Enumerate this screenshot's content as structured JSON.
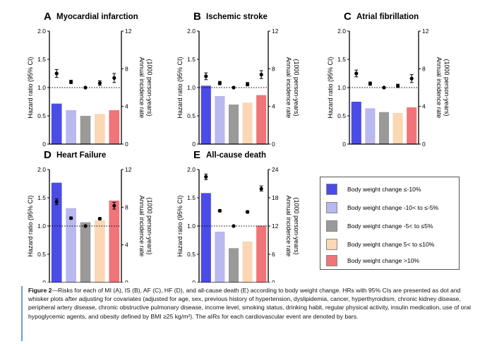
{
  "legend": [
    {
      "label": "Body weight change ≤-10%",
      "color": "#4b4ce6"
    },
    {
      "label": "Body weight change -10< to ≤-5%",
      "color": "#b9b8ef"
    },
    {
      "label": "Body weight change -5< to ≤5%",
      "color": "#9a9a9a"
    },
    {
      "label": "Body weight change 5< to ≤10%",
      "color": "#fbd7b4"
    },
    {
      "label": "Body weight change >10%",
      "color": "#f07478"
    }
  ],
  "chart_data": [
    {
      "type": "bar",
      "panel": "A",
      "title": "Myocardial infarction",
      "ylabel": "Hazard ratio (95% CI)",
      "ylabel_right": "Annual incidence rate (1000 person-years)",
      "ylim": [
        0,
        2.0
      ],
      "yticks": [
        "0",
        "0.5",
        "1.0",
        "1.5",
        "2.0"
      ],
      "ylim_right": [
        0,
        12
      ],
      "yticks_right": [
        "0",
        "4",
        "8",
        "12"
      ],
      "bar_axis": "right",
      "bars": [
        4.3,
        3.6,
        3.0,
        3.2,
        3.6
      ],
      "hr": [
        1.25,
        1.1,
        1.0,
        1.08,
        1.17
      ],
      "hr_low": [
        1.18,
        1.07,
        1.0,
        1.04,
        1.09
      ],
      "hr_high": [
        1.32,
        1.13,
        1.0,
        1.12,
        1.25
      ]
    },
    {
      "type": "bar",
      "panel": "B",
      "title": "Ischemic stroke",
      "ylabel": "Hazard ratio (95% CI)",
      "ylabel_right": "Annual incidence rate (1000 person-years)",
      "ylim": [
        0,
        2.0
      ],
      "yticks": [
        "0",
        "0.5",
        "1.0",
        "1.5",
        "2.0"
      ],
      "ylim_right": [
        0,
        12
      ],
      "yticks_right": [
        "0",
        "4",
        "8",
        "12"
      ],
      "bar_axis": "right",
      "bars": [
        6.2,
        5.1,
        4.2,
        4.4,
        5.2
      ],
      "hr": [
        1.2,
        1.08,
        1.0,
        1.06,
        1.23
      ],
      "hr_low": [
        1.14,
        1.05,
        1.0,
        1.03,
        1.16
      ],
      "hr_high": [
        1.26,
        1.11,
        1.0,
        1.09,
        1.3
      ]
    },
    {
      "type": "bar",
      "panel": "C",
      "title": "Atrial fibrillation",
      "ylabel": "Hazard ratio (95% CI)",
      "ylabel_right": "Annual incidence rate (1000 person-years)",
      "ylim": [
        0,
        2.0
      ],
      "yticks": [
        "0",
        "0.5",
        "1.0",
        "1.5",
        "2.0"
      ],
      "ylim_right": [
        0,
        12
      ],
      "yticks_right": [
        "0",
        "4",
        "8",
        "12"
      ],
      "bar_axis": "right",
      "bars": [
        4.5,
        3.8,
        3.4,
        3.3,
        3.9
      ],
      "hr": [
        1.25,
        1.07,
        1.0,
        1.03,
        1.16
      ],
      "hr_low": [
        1.19,
        1.04,
        1.0,
        1.0,
        1.09
      ],
      "hr_high": [
        1.31,
        1.1,
        1.0,
        1.06,
        1.23
      ]
    },
    {
      "type": "bar",
      "panel": "D",
      "title": "Heart Failure",
      "ylabel": "Hazard ratio (95% CI)",
      "ylabel_right": "Annual incidence rate (1000 person-years)",
      "ylim": [
        0,
        2.0
      ],
      "yticks": [
        "0",
        "0.5",
        "1.0",
        "1.5",
        "2.0"
      ],
      "ylim_right": [
        0,
        12
      ],
      "yticks_right": [
        "0",
        "4",
        "8",
        "12"
      ],
      "bar_axis": "right",
      "bars": [
        10.6,
        7.9,
        6.4,
        6.6,
        8.7
      ],
      "hr": [
        1.43,
        1.14,
        1.0,
        1.13,
        1.36
      ],
      "hr_low": [
        1.38,
        1.12,
        1.0,
        1.11,
        1.3
      ],
      "hr_high": [
        1.48,
        1.16,
        1.0,
        1.15,
        1.42
      ]
    },
    {
      "type": "bar",
      "panel": "E",
      "title": "All-cause death",
      "ylabel": "Hazard ratio (95% CI)",
      "ylabel_right": "Annual incidence rate (1000 person-years)",
      "ylim": [
        0,
        2.0
      ],
      "yticks": [
        "0",
        "0.5",
        "1.0",
        "1.5",
        "2.0"
      ],
      "ylim_right": [
        0,
        24
      ],
      "yticks_right": [
        "0",
        "6",
        "12",
        "18",
        "24"
      ],
      "bar_axis": "right",
      "bars": [
        19.0,
        10.8,
        7.3,
        8.7,
        12.1
      ],
      "hr": [
        1.87,
        1.27,
        1.0,
        1.25,
        1.66
      ],
      "hr_low": [
        1.82,
        1.25,
        1.0,
        1.23,
        1.62
      ],
      "hr_high": [
        1.92,
        1.29,
        1.0,
        1.27,
        1.71
      ]
    }
  ],
  "caption": {
    "fig_label": "Figure 2",
    "text": "—Risks for each of MI (A), IS (B), AF (C), HF (D), and all-cause death (E) according to body weight change. HRs with 95% CIs are presented as dot and whisker plots after adjusting for covariates (adjusted for age, sex, previous history of hypertension, dyslipidemia, cancer, hyperthyroidism, chronic kidney disease, peripheral artery disease, chronic obstructive pulmonary disease, income level, smoking status, drinking habit, regular physical activity, insulin medication, use of oral hypoglycemic agents, and obesity defined by BMI ≥25 kg/m²). The aIRs for each cardiovascular event are denoted by bars."
  }
}
